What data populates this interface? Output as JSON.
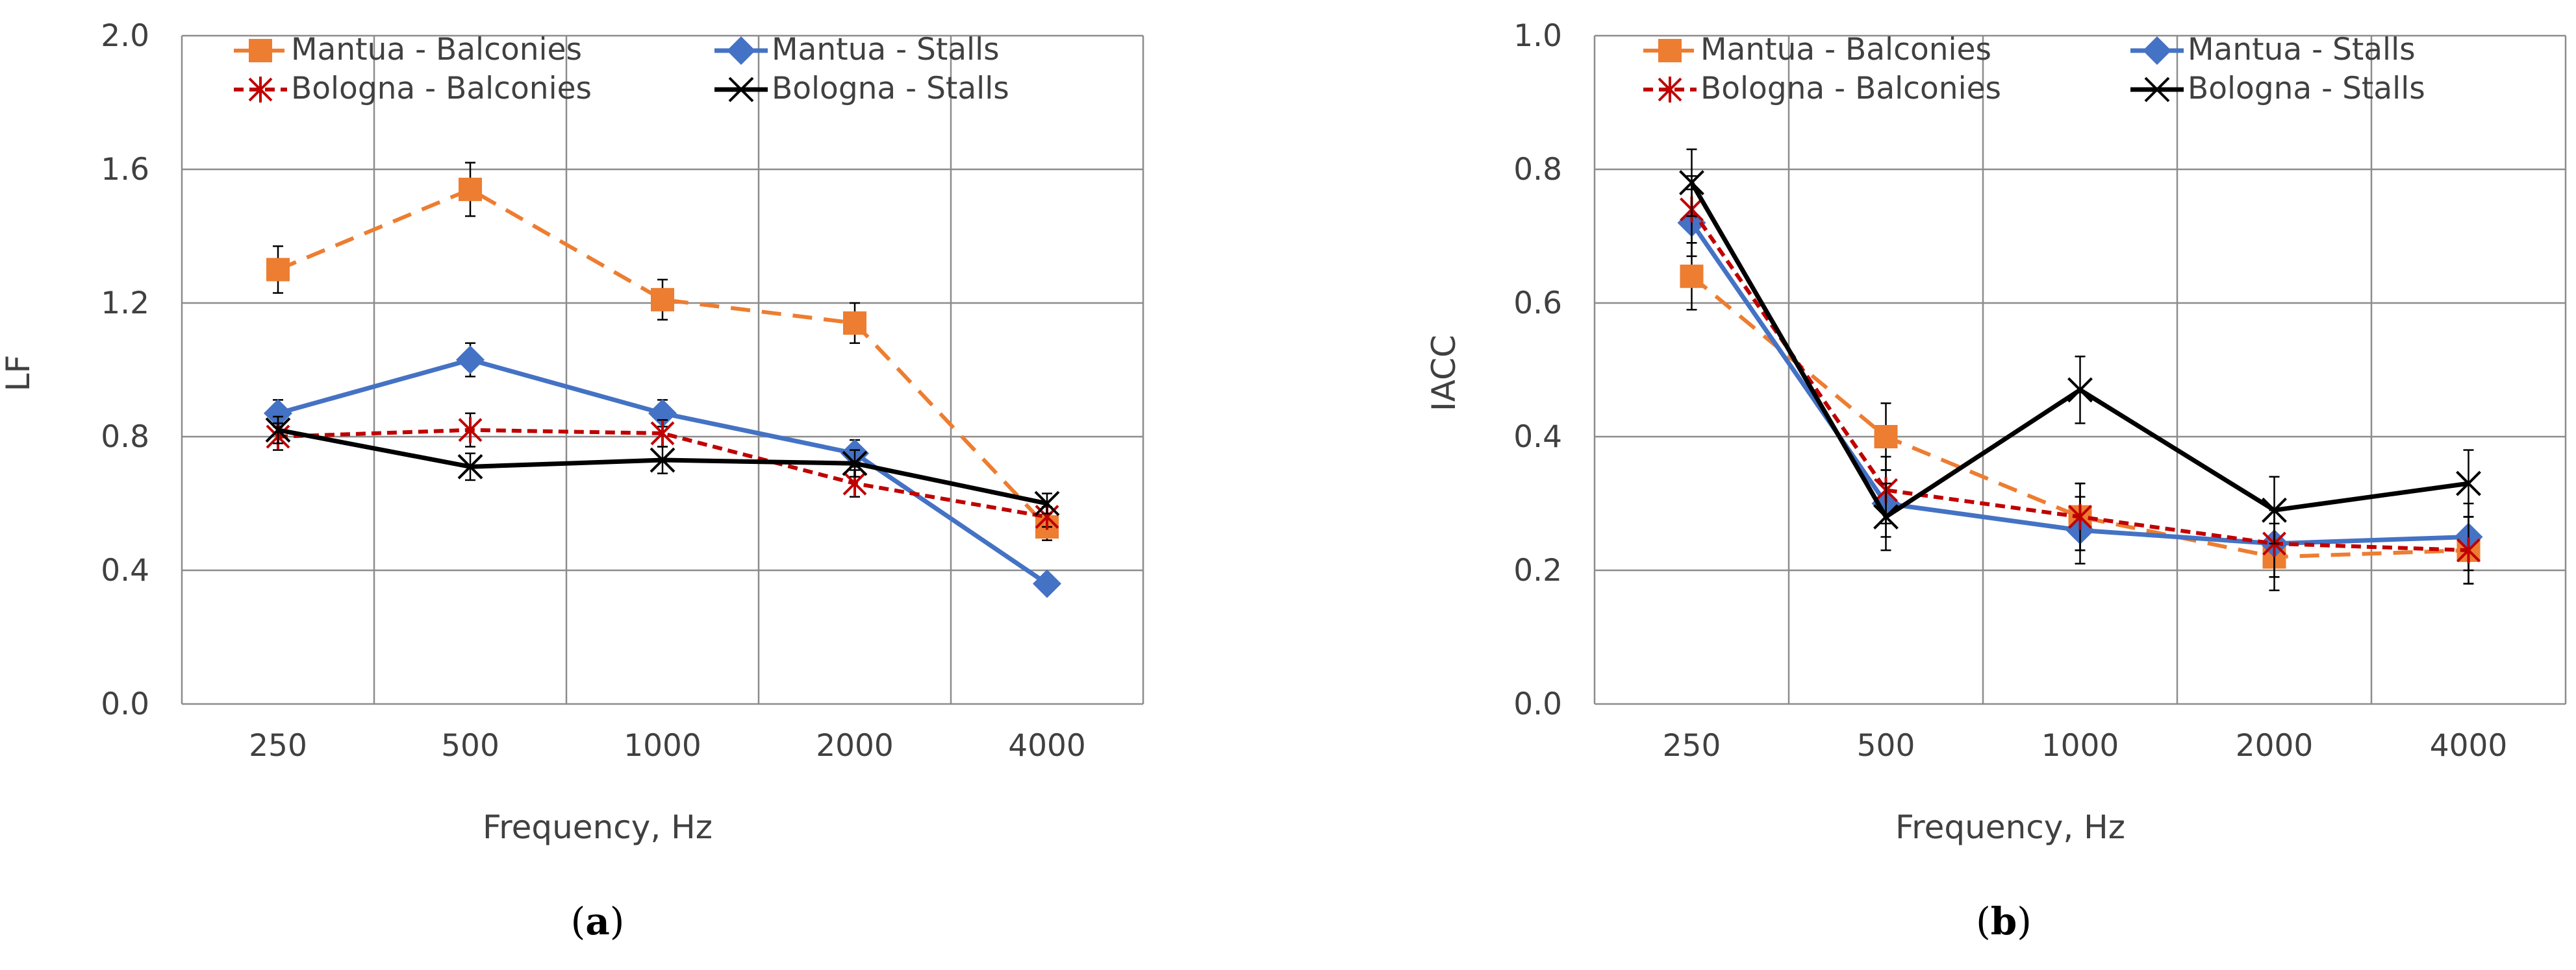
{
  "chart_data": [
    {
      "type": "line",
      "caption": "a",
      "categories": [
        "250",
        "500",
        "1000",
        "2000",
        "4000"
      ],
      "xlabel": "Frequency, Hz",
      "ylabel": "LF",
      "ylim": [
        0,
        2.0
      ],
      "yticks": [
        "0.0",
        "0.4",
        "0.8",
        "1.2",
        "1.6",
        "2.0"
      ],
      "grid": true,
      "legend_position": "top",
      "series": [
        {
          "name": "Mantua - Balconies",
          "values": [
            1.3,
            1.54,
            1.21,
            1.14,
            0.53
          ],
          "errors": [
            0.07,
            0.08,
            0.06,
            0.06,
            0.04
          ],
          "color": "#ED7D31",
          "dash": "dashed",
          "marker": "square"
        },
        {
          "name": "Mantua - Stalls",
          "values": [
            0.87,
            1.03,
            0.87,
            0.75,
            0.36
          ],
          "errors": [
            0.04,
            0.05,
            0.04,
            0.04,
            0.02
          ],
          "color": "#4472C4",
          "dash": "solid",
          "marker": "diamond"
        },
        {
          "name": "Bologna - Balconies",
          "values": [
            0.8,
            0.82,
            0.81,
            0.66,
            0.56
          ],
          "errors": [
            0.04,
            0.05,
            0.04,
            0.04,
            0.03
          ],
          "color": "#C00000",
          "dash": "dotted",
          "marker": "asterisk"
        },
        {
          "name": "Bologna - Stalls",
          "values": [
            0.82,
            0.71,
            0.73,
            0.72,
            0.6
          ],
          "errors": [
            0.04,
            0.04,
            0.04,
            0.04,
            0.03
          ],
          "color": "#000000",
          "dash": "solid",
          "marker": "x"
        }
      ]
    },
    {
      "type": "line",
      "caption": "b",
      "categories": [
        "250",
        "500",
        "1000",
        "2000",
        "4000"
      ],
      "xlabel": "Frequency, Hz",
      "ylabel": "IACC",
      "ylim": [
        0,
        1.0
      ],
      "yticks": [
        "0.0",
        "0.2",
        "0.4",
        "0.6",
        "0.8",
        "1.0"
      ],
      "grid": true,
      "legend_position": "top",
      "series": [
        {
          "name": "Mantua - Balconies",
          "values": [
            0.64,
            0.4,
            0.28,
            0.22,
            0.23
          ],
          "errors": [
            0.05,
            0.05,
            0.05,
            0.05,
            0.05
          ],
          "color": "#ED7D31",
          "dash": "dashed",
          "marker": "square"
        },
        {
          "name": "Mantua - Stalls",
          "values": [
            0.72,
            0.3,
            0.26,
            0.24,
            0.25
          ],
          "errors": [
            0.05,
            0.05,
            0.05,
            0.05,
            0.05
          ],
          "color": "#4472C4",
          "dash": "solid",
          "marker": "diamond"
        },
        {
          "name": "Bologna - Balconies",
          "values": [
            0.74,
            0.32,
            0.28,
            0.24,
            0.23
          ],
          "errors": [
            0.05,
            0.05,
            0.05,
            0.05,
            0.05
          ],
          "color": "#C00000",
          "dash": "dotted",
          "marker": "asterisk"
        },
        {
          "name": "Bologna - Stalls",
          "values": [
            0.78,
            0.28,
            0.47,
            0.29,
            0.33
          ],
          "errors": [
            0.05,
            0.05,
            0.05,
            0.05,
            0.05
          ],
          "color": "#000000",
          "dash": "solid",
          "marker": "x"
        }
      ]
    }
  ]
}
